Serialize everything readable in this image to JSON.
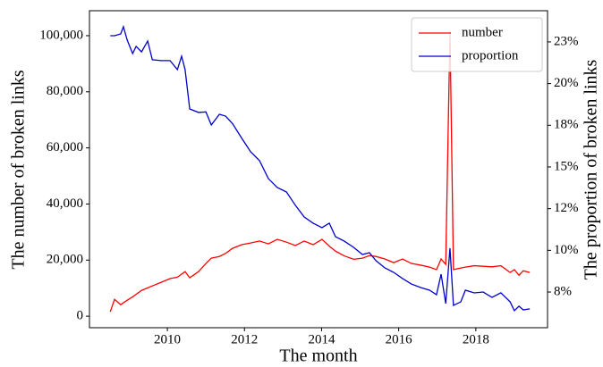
{
  "chart_data": {
    "type": "line",
    "xlabel": "The month",
    "ylabel": "The number of broken links",
    "y2label": "The proportion of broken links",
    "x": [
      2008.52,
      2008.63,
      2008.79,
      2008.86,
      2008.96,
      2009.1,
      2009.19,
      2009.33,
      2009.49,
      2009.61,
      2009.84,
      2010.07,
      2010.26,
      2010.37,
      2010.46,
      2010.58,
      2010.81,
      2011.0,
      2011.14,
      2011.35,
      2011.51,
      2011.69,
      2011.93,
      2012.16,
      2012.39,
      2012.62,
      2012.85,
      2013.09,
      2013.32,
      2013.55,
      2013.78,
      2014.01,
      2014.2,
      2014.36,
      2014.59,
      2014.83,
      2015.06,
      2015.24,
      2015.41,
      2015.64,
      2015.87,
      2016.1,
      2016.33,
      2016.57,
      2016.8,
      2016.98,
      2017.1,
      2017.22,
      2017.33,
      2017.42,
      2017.61,
      2017.73,
      2017.96,
      2018.19,
      2018.42,
      2018.65,
      2018.89,
      2019.0,
      2019.12,
      2019.23,
      2019.4
    ],
    "series": [
      {
        "name": "number",
        "color": "#ff0000",
        "axis": "y",
        "values": [
          1600,
          6000,
          4100,
          4800,
          5700,
          6900,
          7800,
          9200,
          10100,
          10800,
          12100,
          13400,
          13900,
          15000,
          15900,
          13700,
          15900,
          18800,
          20700,
          21300,
          22400,
          24200,
          25500,
          26100,
          26800,
          25800,
          27400,
          26400,
          25200,
          26800,
          25500,
          27400,
          25000,
          23200,
          21500,
          20300,
          20700,
          21600,
          21300,
          20400,
          19100,
          20400,
          18800,
          18200,
          17500,
          16600,
          20400,
          18500,
          101600,
          16600,
          17200,
          17500,
          18000,
          17800,
          17600,
          18000,
          15600,
          16600,
          14600,
          16200,
          15600
        ]
      },
      {
        "name": "proportion",
        "color": "#0000cc",
        "axis": "y2",
        "values": [
          22.87,
          22.87,
          22.98,
          23.41,
          22.6,
          21.8,
          22.23,
          21.9,
          22.55,
          21.43,
          21.38,
          21.38,
          20.84,
          21.64,
          20.84,
          18.48,
          18.27,
          18.3,
          17.52,
          18.16,
          18.05,
          17.6,
          16.72,
          15.91,
          15.38,
          14.3,
          13.77,
          13.5,
          12.7,
          12.0,
          11.63,
          11.36,
          11.63,
          10.82,
          10.55,
          10.18,
          9.75,
          9.86,
          9.38,
          8.95,
          8.68,
          8.31,
          7.98,
          7.77,
          7.61,
          7.34,
          8.57,
          6.81,
          10.13,
          6.7,
          6.91,
          7.61,
          7.45,
          7.5,
          7.18,
          7.45,
          6.91,
          6.38,
          6.65,
          6.43,
          6.49
        ]
      }
    ],
    "xlim": [
      2007.98,
      2019.86
    ],
    "xticks": [
      2010,
      2012,
      2014,
      2016,
      2018
    ],
    "ylim": [
      -4100,
      108900
    ],
    "yticks": [
      0,
      {
        "value": 20000,
        "label": "20,000"
      },
      {
        "value": 40000,
        "label": "40,000"
      },
      {
        "value": 60000,
        "label": "60,000"
      },
      {
        "value": 80000,
        "label": "80,000"
      },
      {
        "value": 100000,
        "label": "100,000"
      }
    ],
    "y2lim": [
      5.36,
      24.37
    ],
    "y2ticks": [
      {
        "value": 7.5,
        "label": "8%"
      },
      {
        "value": 10,
        "label": "10%"
      },
      {
        "value": 12.5,
        "label": "12%"
      },
      {
        "value": 15,
        "label": "15%"
      },
      {
        "value": 17.5,
        "label": "18%"
      },
      {
        "value": 20,
        "label": "20%"
      },
      {
        "value": 22.5,
        "label": "23%"
      }
    ],
    "legend": "upper right"
  }
}
